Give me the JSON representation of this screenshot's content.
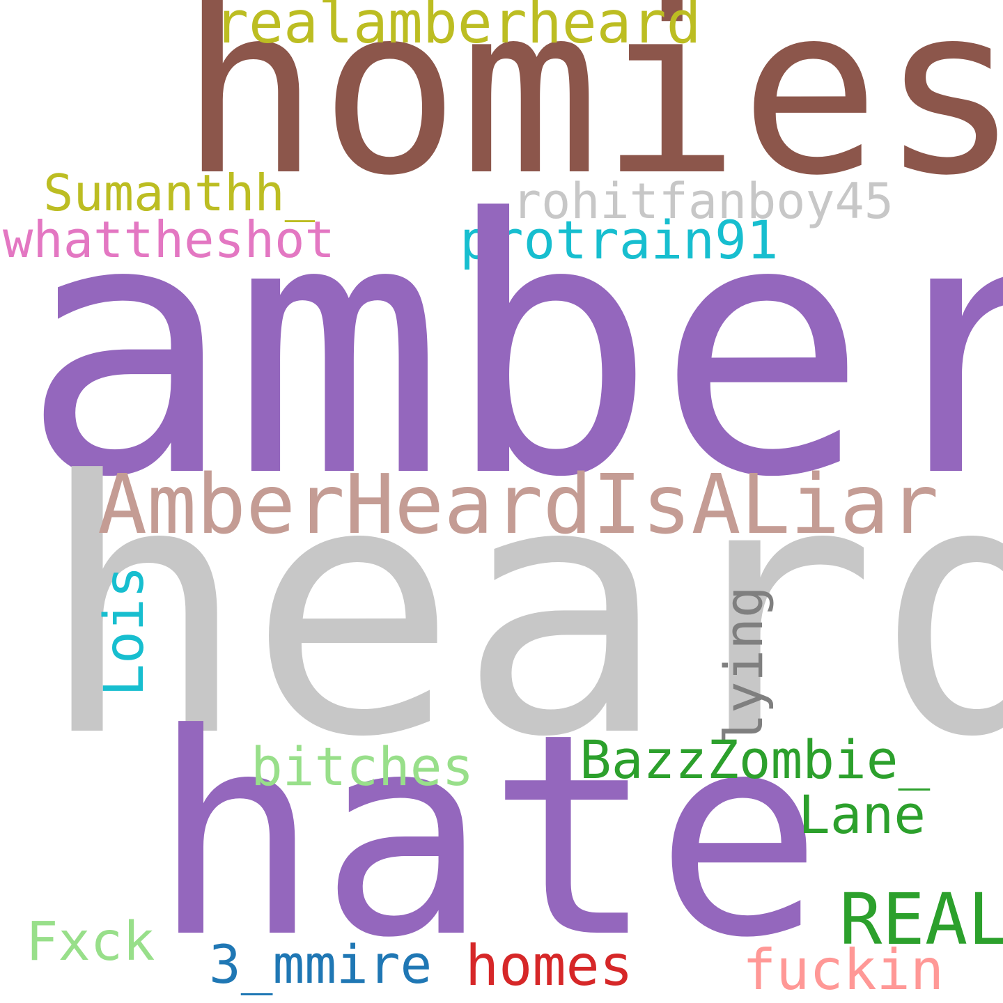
{
  "words": {
    "homies": {
      "text": "homies",
      "color": "#8c564b"
    },
    "amber": {
      "text": "amber",
      "color": "#9467bd"
    },
    "heard": {
      "text": "heard",
      "color": "#c7c7c7"
    },
    "hate": {
      "text": "hate",
      "color": "#9467bd"
    },
    "amberheardisaliar": {
      "text": "AmberHeardIsALiar",
      "color": "#c49c94"
    },
    "realamberheard": {
      "text": "realamberheard",
      "color": "#bcbd22"
    },
    "sumanthh": {
      "text": "Sumanthh_",
      "color": "#bcbd22"
    },
    "whattheshot": {
      "text": "whattheshot",
      "color": "#e377c2"
    },
    "rohitfanboy45": {
      "text": "rohitfanboy45",
      "color": "#c7c7c7"
    },
    "protrain91": {
      "text": "protrain91",
      "color": "#17becf"
    },
    "lois": {
      "text": "Lois",
      "color": "#17becf"
    },
    "lying": {
      "text": "lying",
      "color": "#7f7f7f"
    },
    "bitches": {
      "text": "bitches",
      "color": "#98df8a"
    },
    "bazzzombie": {
      "text": "BazzZombie_",
      "color": "#2ca02c"
    },
    "lane": {
      "text": "Lane",
      "color": "#2ca02c"
    },
    "real": {
      "text": "REAL",
      "color": "#2ca02c"
    },
    "fxck": {
      "text": "Fxck",
      "color": "#98df8a"
    },
    "mmire": {
      "text": "3_mmire",
      "color": "#1f77b4"
    },
    "homes": {
      "text": "homes",
      "color": "#d62728"
    },
    "fuckin": {
      "text": "fuckin",
      "color": "#ff9896"
    }
  }
}
